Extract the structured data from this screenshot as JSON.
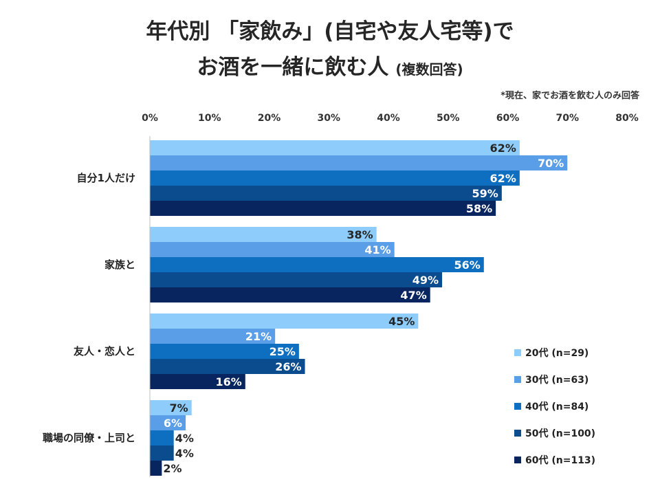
{
  "title_line1": "年代別 「家飲み」(自宅や友人宅等)で",
  "title_line2": "お酒を一緒に飲む人",
  "title_sub": "(複数回答)",
  "footnote": "*現在、家でお酒を飲む人のみ回答",
  "chart_data": {
    "type": "bar",
    "orientation": "horizontal",
    "title": "年代別 「家飲み」(自宅や友人宅等)でお酒を一緒に飲む人 (複数回答)",
    "categories": [
      "自分1人だけ",
      "家族と",
      "友人・恋人と",
      "職場の同僚・上司と"
    ],
    "series": [
      {
        "name": "20代 (n=29)",
        "color": "#8ecdfb",
        "label_color": "#262626",
        "values": [
          62,
          38,
          45,
          7
        ]
      },
      {
        "name": "30代 (n=63)",
        "color": "#5a9ee8",
        "label_color": "#ffffff",
        "values": [
          70,
          41,
          21,
          6
        ]
      },
      {
        "name": "40代 (n=84)",
        "color": "#0e6fc0",
        "label_color": "#ffffff",
        "values": [
          62,
          56,
          25,
          4
        ]
      },
      {
        "name": "50代 (n=100)",
        "color": "#0b4c8f",
        "label_color": "#ffffff",
        "values": [
          59,
          49,
          26,
          4
        ]
      },
      {
        "name": "60代 (n=113)",
        "color": "#082560",
        "label_color": "#ffffff",
        "values": [
          58,
          47,
          16,
          2
        ]
      }
    ],
    "ticks": [
      0,
      10,
      20,
      30,
      40,
      50,
      60,
      70,
      80
    ],
    "tick_labels": [
      "0%",
      "10%",
      "20%",
      "30%",
      "40%",
      "50%",
      "60%",
      "70%",
      "80%"
    ],
    "xlim": [
      0,
      80
    ],
    "value_suffix": "%",
    "legend_position": "right",
    "grid": false
  }
}
